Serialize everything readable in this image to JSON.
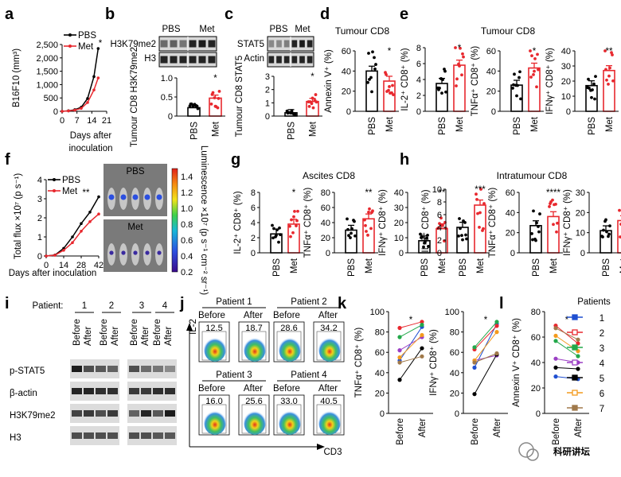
{
  "panel_letters": [
    "a",
    "b",
    "c",
    "d",
    "e",
    "f",
    "g",
    "h",
    "i",
    "j",
    "k",
    "l"
  ],
  "colors": {
    "pbs": "#000000",
    "met": "#e8282e",
    "bar_met": "#e8282e",
    "bar_pbs": "#000000"
  },
  "watermark": "科研讲坛",
  "chart_data": [
    {
      "id": "a",
      "type": "line",
      "ylabel": "B16F10 (mm³)",
      "xlabel": "Days after inoculation",
      "xticks": [
        "0",
        "7",
        "14",
        "21"
      ],
      "yticks": [
        "0",
        "500",
        "1,000",
        "1,500",
        "2,000",
        "2,500"
      ],
      "ylim": [
        0,
        2500
      ],
      "legend": [
        "PBS",
        "Met"
      ],
      "annotation": "*",
      "series": [
        {
          "name": "PBS",
          "x": [
            0,
            3,
            6,
            9,
            12,
            15,
            17
          ],
          "y": [
            0,
            20,
            60,
            150,
            480,
            1300,
            2350
          ]
        },
        {
          "name": "Met",
          "x": [
            0,
            3,
            6,
            9,
            12,
            15,
            17
          ],
          "y": [
            0,
            15,
            45,
            110,
            330,
            800,
            1250
          ]
        }
      ]
    },
    {
      "id": "b",
      "type": "bar",
      "ylabel": "Tumour CD8 H3K79me2",
      "blot_labels": [
        "H3K79me2",
        "H3"
      ],
      "blot_groups": [
        "PBS",
        "Met"
      ],
      "categories": [
        "PBS",
        "Met"
      ],
      "yticks": [
        "0",
        "0.5",
        "1.0"
      ],
      "ylim": [
        0,
        1.0
      ],
      "values": [
        0.22,
        0.47
      ],
      "annotation": "*"
    },
    {
      "id": "c",
      "type": "bar",
      "ylabel": "Tumour CD8 STAT5",
      "blot_labels": [
        "STAT5",
        "Actin"
      ],
      "blot_groups": [
        "PBS",
        "Met"
      ],
      "categories": [
        "PBS",
        "Met"
      ],
      "yticks": [
        "0",
        "1",
        "2",
        "3"
      ],
      "ylim": [
        0,
        3
      ],
      "values": [
        0.25,
        1.1
      ],
      "annotation": "*"
    },
    {
      "id": "d",
      "type": "bar",
      "title": "Tumour CD8",
      "ylabel": "Annexin V⁺ (%)",
      "categories": [
        "PBS",
        "Met"
      ],
      "yticks": [
        "0",
        "20",
        "40",
        "60"
      ],
      "ylim": [
        0,
        60
      ],
      "values": [
        40,
        30
      ],
      "annotation": "*"
    },
    {
      "id": "e1",
      "type": "bar",
      "title": "Tumour CD8",
      "ylabel": "IL-2⁺ CD8⁺ (%)",
      "categories": [
        "PBS",
        "Met"
      ],
      "yticks": [
        "0",
        "2",
        "4",
        "6",
        "8"
      ],
      "ylim": [
        0,
        8
      ],
      "values": [
        3.5,
        5.8
      ],
      "annotation": "*"
    },
    {
      "id": "e2",
      "type": "bar",
      "ylabel": "TNFα⁺ CD8⁺ (%)",
      "categories": [
        "PBS",
        "Met"
      ],
      "yticks": [
        "0",
        "20",
        "40",
        "60"
      ],
      "ylim": [
        0,
        60
      ],
      "values": [
        26,
        43
      ],
      "annotation": "*"
    },
    {
      "id": "e3",
      "type": "bar",
      "ylabel": "IFNγ⁺ CD8⁺ (%)",
      "categories": [
        "PBS",
        "Met"
      ],
      "yticks": [
        "0",
        "10",
        "20",
        "30",
        "40"
      ],
      "ylim": [
        0,
        40
      ],
      "values": [
        17,
        27
      ],
      "annotation": "**"
    },
    {
      "id": "f",
      "type": "line",
      "ylabel": "Total flux ×10⁷ (p s⁻¹)",
      "xlabel": "Days after inoculation",
      "xticks": [
        "0",
        "14",
        "28",
        "42"
      ],
      "yticks": [
        "0",
        "1",
        "2",
        "3",
        "4"
      ],
      "ylim": [
        0,
        4
      ],
      "legend": [
        "PBS",
        "Met"
      ],
      "annotation": "**",
      "image_labels": [
        "PBS",
        "Met"
      ],
      "colorbar_label": "Luminescence ×10⁷ (p s⁻¹ cm⁻² sr⁻¹)",
      "colorbar_ticks": [
        "0.2",
        "0.4",
        "0.6",
        "0.8",
        "1.0",
        "1.2",
        "1.4"
      ],
      "colorbar_range": [
        0.2,
        1.5
      ],
      "series": [
        {
          "name": "PBS",
          "x": [
            0,
            7,
            14,
            21,
            28,
            35,
            42
          ],
          "y": [
            0,
            0.05,
            0.4,
            1.0,
            1.7,
            2.3,
            3.1
          ]
        },
        {
          "name": "Met",
          "x": [
            0,
            7,
            14,
            21,
            28,
            35,
            42
          ],
          "y": [
            0,
            0.04,
            0.3,
            0.7,
            1.3,
            1.8,
            2.2
          ]
        }
      ]
    },
    {
      "id": "g1",
      "type": "bar",
      "ylabel": "IL-2⁺ CD8⁺ (%)",
      "group_title": "Ascites CD8",
      "categories": [
        "PBS",
        "Met"
      ],
      "yticks": [
        "0",
        "2",
        "4",
        "6",
        "8"
      ],
      "ylim": [
        0,
        8
      ],
      "values": [
        2.5,
        3.8
      ],
      "annotation": "*"
    },
    {
      "id": "g2",
      "type": "bar",
      "ylabel": "TNFα⁺ CD8⁺ (%)",
      "categories": [
        "PBS",
        "Met"
      ],
      "yticks": [
        "0",
        "20",
        "40",
        "60",
        "80"
      ],
      "ylim": [
        0,
        80
      ],
      "values": [
        30,
        45
      ],
      "annotation": "**"
    },
    {
      "id": "g3",
      "type": "bar",
      "ylabel": "IFNγ⁺ CD8⁺ (%)",
      "categories": [
        "PBS",
        "Met"
      ],
      "yticks": [
        "0",
        "10",
        "20",
        "30",
        "40"
      ],
      "ylim": [
        0,
        40
      ],
      "values": [
        8,
        16
      ],
      "annotation": "**"
    },
    {
      "id": "h1",
      "type": "bar",
      "ylabel": "IL-2⁺ CD8⁺ (%)",
      "group_title": "Intratumour CD8",
      "categories": [
        "PBS",
        "Met"
      ],
      "yticks": [
        "0",
        "2",
        "4",
        "6",
        "8",
        "10"
      ],
      "ylim": [
        0,
        10
      ],
      "values": [
        4,
        7.5
      ],
      "annotation": "***"
    },
    {
      "id": "h2",
      "type": "bar",
      "ylabel": "TNFα⁺ CD8⁺ (%)",
      "categories": [
        "PBS",
        "Met"
      ],
      "yticks": [
        "0",
        "20",
        "40",
        "60"
      ],
      "ylim": [
        0,
        60
      ],
      "values": [
        27,
        36
      ],
      "annotation": "****"
    },
    {
      "id": "h3",
      "type": "bar",
      "ylabel": "IFNγ⁺ CD8⁺ (%)",
      "categories": [
        "PBS",
        "Met"
      ],
      "yticks": [
        "0",
        "10",
        "20",
        "30"
      ],
      "ylim": [
        0,
        30
      ],
      "values": [
        11,
        16
      ],
      "annotation": "*"
    },
    {
      "id": "k1",
      "type": "line",
      "ylabel": "TNFα⁺ CD8⁺ (%)",
      "categories": [
        "Before",
        "After"
      ],
      "yticks": [
        "0",
        "20",
        "40",
        "60",
        "80",
        "100"
      ],
      "ylim": [
        0,
        100
      ],
      "annotation": "*",
      "series": [
        {
          "name": "1",
          "values": [
            52,
            85
          ]
        },
        {
          "name": "2",
          "values": [
            84,
            90
          ]
        },
        {
          "name": "3",
          "values": [
            75,
            87
          ]
        },
        {
          "name": "4",
          "values": [
            62,
            75
          ]
        },
        {
          "name": "5",
          "values": [
            33,
            64
          ]
        },
        {
          "name": "6",
          "values": [
            55,
            77
          ]
        },
        {
          "name": "7",
          "values": [
            50,
            56
          ]
        }
      ]
    },
    {
      "id": "k2",
      "type": "line",
      "ylabel": "IFNγ⁺ CD8⁺ (%)",
      "categories": [
        "Before",
        "After"
      ],
      "yticks": [
        "0",
        "20",
        "40",
        "60",
        "80",
        "100"
      ],
      "ylim": [
        0,
        100
      ],
      "annotation": "*",
      "series": [
        {
          "name": "1",
          "values": [
            45,
            88
          ]
        },
        {
          "name": "2",
          "values": [
            63,
            86
          ]
        },
        {
          "name": "3",
          "values": [
            65,
            90
          ]
        },
        {
          "name": "4",
          "values": [
            52,
            57
          ]
        },
        {
          "name": "5",
          "values": [
            19,
            58
          ]
        },
        {
          "name": "6",
          "values": [
            52,
            80
          ]
        },
        {
          "name": "7",
          "values": [
            50,
            59
          ]
        }
      ]
    },
    {
      "id": "l",
      "type": "line",
      "ylabel": "Annexin V⁺ CD8⁺ (%)",
      "categories": [
        "Before",
        "After"
      ],
      "yticks": [
        "0",
        "20",
        "40",
        "60",
        "80"
      ],
      "ylim": [
        0,
        80
      ],
      "annotation": "*",
      "legend_title": "Patients",
      "series": [
        {
          "name": "1",
          "values": [
            29,
            27
          ]
        },
        {
          "name": "2",
          "values": [
            69,
            55
          ]
        },
        {
          "name": "3",
          "values": [
            57,
            45
          ]
        },
        {
          "name": "4",
          "values": [
            43,
            40
          ]
        },
        {
          "name": "5",
          "values": [
            36,
            35
          ]
        },
        {
          "name": "6",
          "values": [
            61,
            49
          ]
        },
        {
          "name": "7",
          "values": [
            67,
            58
          ]
        }
      ],
      "series_colors": [
        "#1f4fd1",
        "#e8282e",
        "#23a84a",
        "#9b3fc4",
        "#000000",
        "#f39a1d",
        "#a0794a"
      ]
    }
  ],
  "panel_i": {
    "patient_label": "Patient:",
    "patients": [
      "1",
      "2",
      "3",
      "4"
    ],
    "groups": [
      "Before",
      "After"
    ],
    "rows": [
      "p-STAT5",
      "β-actin",
      "H3K79me2",
      "H3"
    ]
  },
  "panel_j": {
    "y_axis": "IL-2",
    "x_axis": "CD3",
    "patients": [
      {
        "name": "Patient 1",
        "before": "12.5",
        "after": "18.7"
      },
      {
        "name": "Patient 2",
        "before": "28.6",
        "after": "34.2"
      },
      {
        "name": "Patient 3",
        "before": "16.0",
        "after": "25.6"
      },
      {
        "name": "Patient 4",
        "before": "33.0",
        "after": "40.5"
      }
    ],
    "before_label": "Before",
    "after_label": "After"
  }
}
